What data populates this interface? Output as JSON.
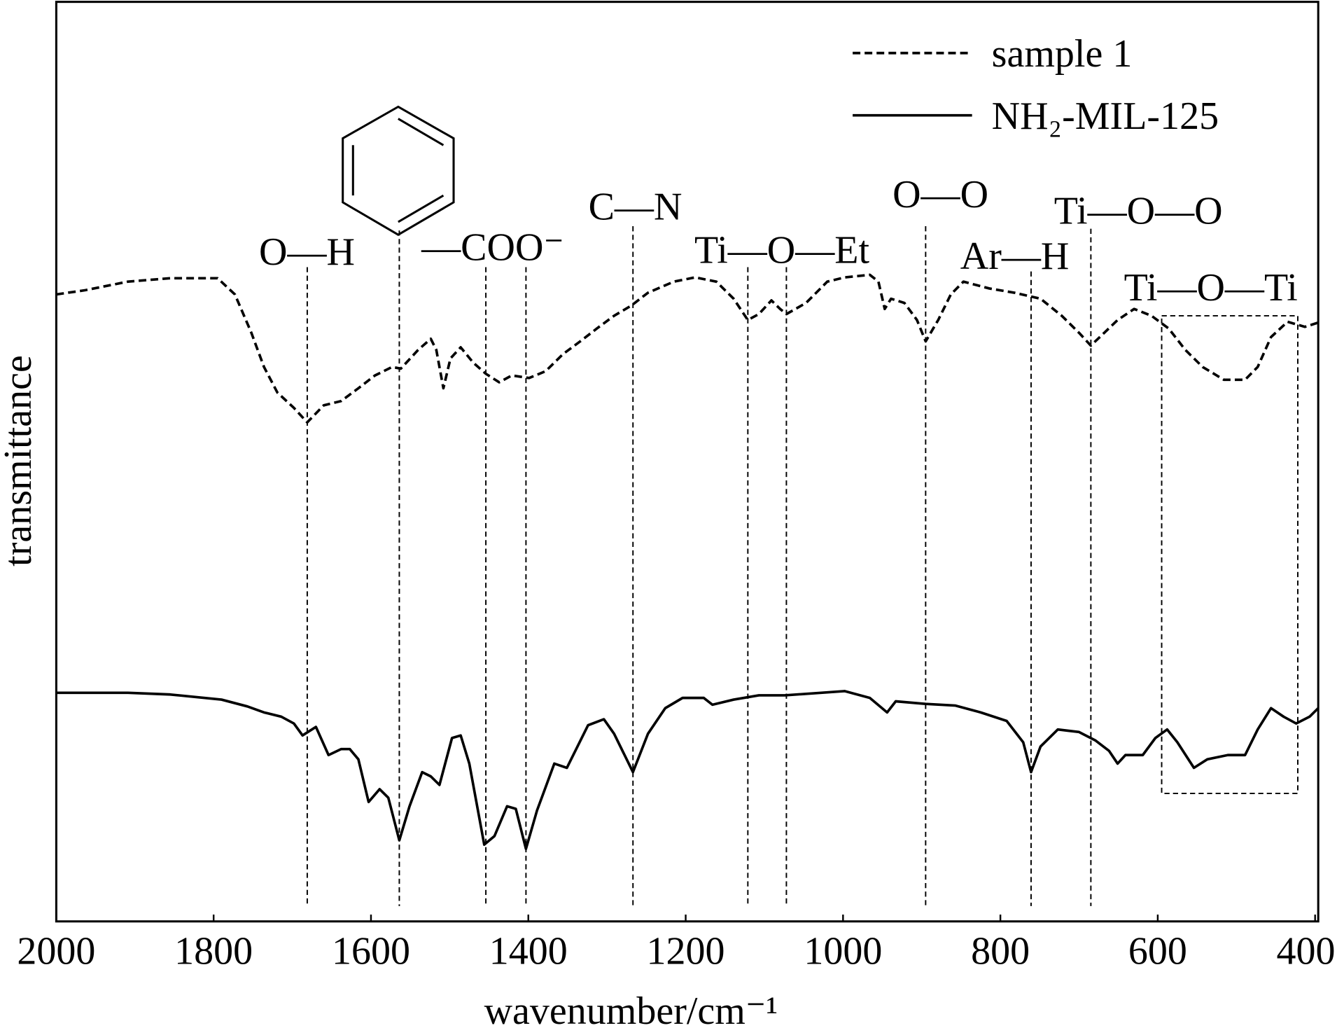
{
  "chart_data": {
    "type": "line",
    "xlabel": "wavenumber/cm⁻¹",
    "ylabel": "transmittance",
    "xlim": [
      2000,
      396
    ],
    "xticks": [
      2000,
      1800,
      1600,
      1400,
      1200,
      1000,
      800,
      600,
      400
    ],
    "ylim": [
      0,
      1078
    ],
    "legend": "upper right",
    "series": [
      {
        "name": "sample 1",
        "color": "#000000",
        "dashed": true,
        "x": [
          2000,
          1963,
          1909,
          1855,
          1795,
          1773,
          1752,
          1736,
          1719,
          1698,
          1681,
          1660,
          1638,
          1616,
          1595,
          1573,
          1562,
          1540,
          1524,
          1517,
          1508,
          1499,
          1486,
          1470,
          1454,
          1437,
          1421,
          1399,
          1378,
          1356,
          1334,
          1313,
          1291,
          1269,
          1248,
          1215,
          1188,
          1161,
          1139,
          1121,
          1107,
          1091,
          1080,
          1072,
          1047,
          1020,
          998,
          966,
          955,
          947,
          939,
          922,
          906,
          895,
          879,
          863,
          847,
          814,
          782,
          749,
          722,
          700,
          685,
          668,
          651,
          630,
          608,
          586,
          565,
          543,
          516,
          489,
          473,
          456,
          435,
          413,
          396
        ],
        "values": [
          735,
          740,
          750,
          754,
          754,
          735,
          690,
          650,
          620,
          602,
          585,
          605,
          610,
          625,
          640,
          650,
          648,
          670,
          683,
          670,
          625,
          660,
          673,
          655,
          642,
          632,
          640,
          637,
          645,
          665,
          680,
          695,
          710,
          722,
          737,
          750,
          755,
          750,
          730,
          705,
          712,
          728,
          718,
          712,
          725,
          750,
          755,
          758,
          750,
          718,
          730,
          725,
          705,
          680,
          705,
          735,
          750,
          742,
          737,
          730,
          710,
          690,
          675,
          690,
          705,
          718,
          710,
          695,
          670,
          650,
          635,
          635,
          650,
          685,
          703,
          697,
          702
        ]
      },
      {
        "name": "NH₂-MIL-125",
        "color": "#000000",
        "dashed": false,
        "x": [
          2000,
          1909,
          1855,
          1790,
          1757,
          1736,
          1714,
          1698,
          1687,
          1670,
          1654,
          1638,
          1627,
          1616,
          1603,
          1589,
          1578,
          1564,
          1551,
          1535,
          1524,
          1513,
          1497,
          1486,
          1475,
          1456,
          1443,
          1427,
          1416,
          1403,
          1389,
          1367,
          1351,
          1324,
          1304,
          1291,
          1267,
          1248,
          1226,
          1204,
          1177,
          1166,
          1139,
          1107,
          1074,
          998,
          966,
          944,
          933,
          895,
          857,
          825,
          792,
          771,
          761,
          749,
          727,
          700,
          679,
          662,
          651,
          641,
          619,
          603,
          588,
          575,
          554,
          537,
          511,
          489,
          473,
          456,
          440,
          424,
          407,
          396
        ],
        "values": [
          268,
          268,
          266,
          260,
          252,
          245,
          240,
          232,
          218,
          228,
          195,
          202,
          202,
          190,
          140,
          155,
          145,
          95,
          135,
          175,
          170,
          160,
          215,
          218,
          185,
          90,
          100,
          135,
          132,
          85,
          130,
          185,
          180,
          230,
          237,
          220,
          175,
          220,
          250,
          262,
          262,
          254,
          260,
          265,
          265,
          270,
          262,
          245,
          258,
          255,
          253,
          245,
          235,
          210,
          175,
          205,
          225,
          222,
          212,
          200,
          185,
          195,
          195,
          215,
          225,
          210,
          180,
          190,
          195,
          195,
          225,
          250,
          240,
          232,
          240,
          250
        ]
      }
    ],
    "annotations": [
      {
        "text": "O—H",
        "x": [
          1681
        ]
      },
      {
        "text": "—COO⁻",
        "x": [
          1564,
          1454,
          1403
        ]
      },
      {
        "text": "C—N",
        "x": [
          1267
        ]
      },
      {
        "text": "Ti—O—Et",
        "x": [
          1121,
          1072
        ]
      },
      {
        "text": "O—O",
        "x": [
          895
        ]
      },
      {
        "text": "Ar—H",
        "x": [
          761
        ]
      },
      {
        "text": "Ti—O—O",
        "x": [
          685
        ]
      },
      {
        "text": "Ti—O—Ti",
        "region": [
          595,
          422
        ]
      }
    ]
  }
}
